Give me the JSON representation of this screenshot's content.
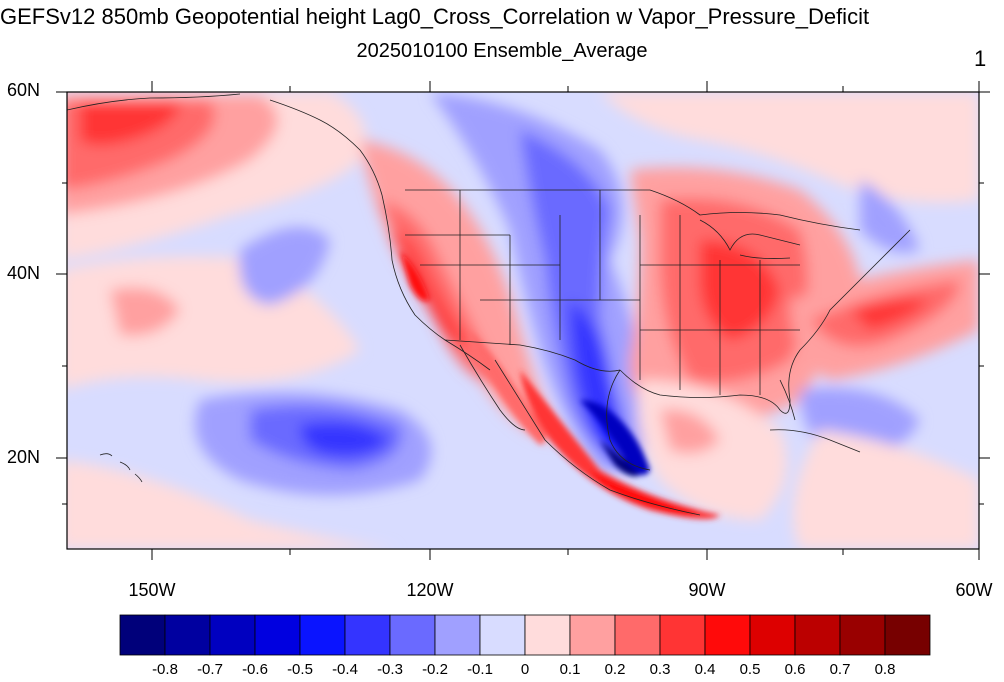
{
  "map": {
    "title": "GEFSv12 850mb Geopotential height Lag0_Cross_Correlation w Vapor_Pressure_Deficit",
    "subtitle": "2025010100 Ensemble_Average",
    "panel_number": "1",
    "lat_labels": [
      "60N",
      "40N",
      "20N"
    ],
    "lon_labels": [
      "150W",
      "120W",
      "90W",
      "60W"
    ],
    "colorbar": {
      "labels": [
        "-0.8",
        "-0.7",
        "-0.6",
        "-0.5",
        "-0.4",
        "-0.3",
        "-0.2",
        "-0.1",
        "0",
        "0.1",
        "0.2",
        "0.3",
        "0.4",
        "0.5",
        "0.6",
        "0.7",
        "0.8"
      ],
      "colors": [
        "#00007a",
        "#0000a0",
        "#0000c0",
        "#0000e0",
        "#0a14ff",
        "#3434ff",
        "#6a6aff",
        "#a0a0ff",
        "#d8dcff",
        "#ffdcdc",
        "#ffa0a0",
        "#ff6a6a",
        "#ff3434",
        "#ff0a0a",
        "#dd0000",
        "#bb0000",
        "#990000",
        "#770000"
      ]
    }
  }
}
